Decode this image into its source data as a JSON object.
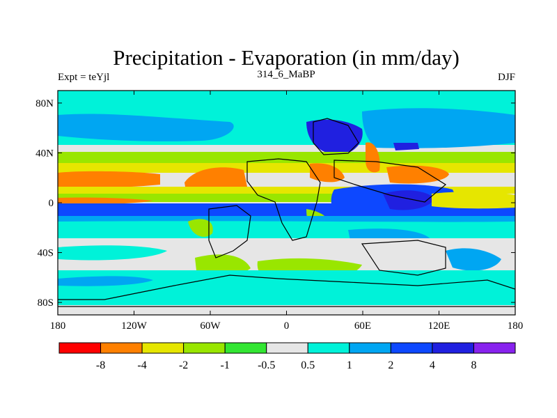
{
  "chart_data": {
    "type": "heatmap",
    "title": "Precipitation - Evaporation (in mm/day)",
    "left_label": "Expt = teYjl",
    "center_label": "314_6_MaBP",
    "right_label": "DJF",
    "x_range": [
      -180,
      180
    ],
    "y_range": [
      -90,
      90
    ],
    "x_ticks": [
      {
        "value": -180,
        "label": "180"
      },
      {
        "value": -120,
        "label": "120W"
      },
      {
        "value": -60,
        "label": "60W"
      },
      {
        "value": 0,
        "label": "0"
      },
      {
        "value": 60,
        "label": "60E"
      },
      {
        "value": 120,
        "label": "120E"
      },
      {
        "value": 180,
        "label": "180"
      }
    ],
    "y_ticks": [
      {
        "value": 80,
        "label": "80N"
      },
      {
        "value": 40,
        "label": "40N"
      },
      {
        "value": 0,
        "label": "0"
      },
      {
        "value": -40,
        "label": "40S"
      },
      {
        "value": -80,
        "label": "80S"
      }
    ],
    "levels": [
      {
        "label": "-8",
        "value": -8
      },
      {
        "label": "-4",
        "value": -4
      },
      {
        "label": "-2",
        "value": -2
      },
      {
        "label": "-1",
        "value": -1
      },
      {
        "label": "-0.5",
        "value": -0.5
      },
      {
        "label": "0.5",
        "value": 0.5
      },
      {
        "label": "1",
        "value": 1
      },
      {
        "label": "2",
        "value": 2
      },
      {
        "label": "4",
        "value": 4
      },
      {
        "label": "8",
        "value": 8
      }
    ],
    "colors": [
      "#ff0000",
      "#ff8000",
      "#e6e600",
      "#99e600",
      "#33e633",
      "#e6e6e6",
      "#00f2d9",
      "#00a6f2",
      "#0d48ff",
      "#2020e0",
      "#8822ee"
    ],
    "approximate_field_bands": [
      {
        "lat_range": [
          70,
          90
        ],
        "value": 1
      },
      {
        "lat_range": [
          40,
          60
        ],
        "value": 2
      },
      {
        "lat_range": [
          25,
          35
        ],
        "value": 0
      },
      {
        "lat_range": [
          15,
          25
        ],
        "value": -1
      },
      {
        "lat_range": [
          5,
          15
        ],
        "value": -4
      },
      {
        "lat_range": [
          -5,
          5
        ],
        "value": -2
      },
      {
        "lat_range": [
          -15,
          -5
        ],
        "value": 4
      },
      {
        "lat_range": [
          -25,
          -15
        ],
        "value": 1
      },
      {
        "lat_range": [
          -40,
          -25
        ],
        "value": 0
      },
      {
        "lat_range": [
          -60,
          -40
        ],
        "value": -1
      },
      {
        "lat_range": [
          -90,
          -65
        ],
        "value": 0
      }
    ]
  }
}
